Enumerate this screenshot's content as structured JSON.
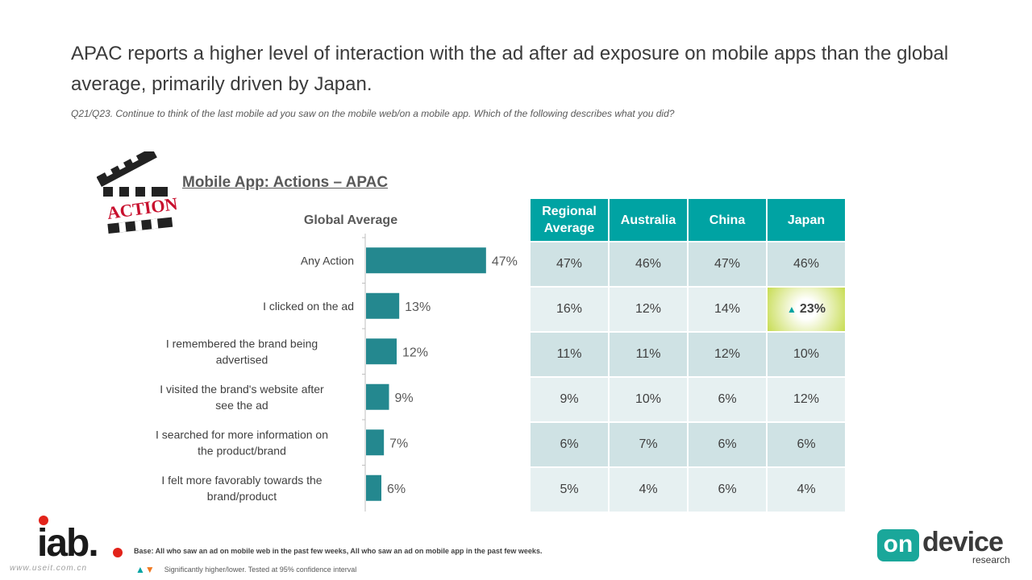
{
  "headline": "APAC reports a higher level of interaction with the ad after ad exposure on mobile apps than the global average, primarily driven by Japan.",
  "question": "Q21/Q23. Continue to think of the last mobile ad you saw on the mobile web/on a mobile app. Which of the following describes what you did?",
  "action_logo_text": "ACTION",
  "chart_title": "Mobile App: Actions –  APAC",
  "chart_data": [
    {
      "type": "bar",
      "orientation": "horizontal",
      "title": "Global Average",
      "categories": [
        "Any Action",
        "I clicked on the ad",
        "I remembered the brand being advertised",
        "I visited the brand's website after see the ad",
        "I searched for more information on the product/brand",
        "I felt more favorably towards the brand/product"
      ],
      "values": [
        47,
        13,
        12,
        9,
        7,
        6
      ],
      "value_labels": [
        "47%",
        "13%",
        "12%",
        "9%",
        "7%",
        "6%"
      ],
      "xlim": [
        0,
        60
      ],
      "bar_color": "#24888f",
      "grid": false
    },
    {
      "type": "table",
      "columns": [
        "Regional Average",
        "Australia",
        "China",
        "Japan"
      ],
      "rows": [
        [
          "47%",
          "46%",
          "47%",
          "46%"
        ],
        [
          "16%",
          "12%",
          "14%",
          "23%"
        ],
        [
          "11%",
          "11%",
          "12%",
          "10%"
        ],
        [
          "9%",
          "10%",
          "6%",
          "12%"
        ],
        [
          "6%",
          "7%",
          "6%",
          "6%"
        ],
        [
          "5%",
          "4%",
          "6%",
          "4%"
        ]
      ],
      "significant_higher": [
        {
          "row": 1,
          "col": 3
        }
      ]
    }
  ],
  "footer": {
    "iab_logo": "iab.",
    "watermark": "www.useit.com.cn",
    "base": "Base: All who saw an ad on mobile web in the past few weeks, All who saw an ad on mobile app in the past few weeks.",
    "legend": "Significantly higher/lower. Tested at 95% confidence interval",
    "ondevice_on": "on",
    "ondevice_device": "device",
    "ondevice_research": "research"
  },
  "colors": {
    "header_teal": "#00a3a3",
    "bar_teal": "#24888f",
    "highlight_green": "#c7dc52",
    "down_orange": "#f07820"
  }
}
